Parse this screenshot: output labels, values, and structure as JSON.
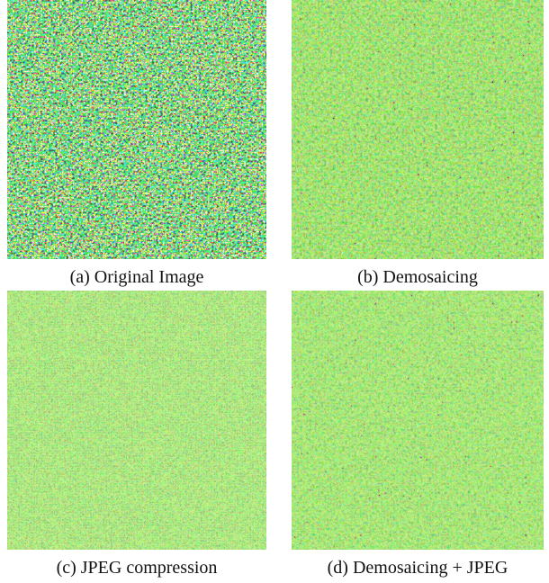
{
  "figure": {
    "panels": [
      {
        "caption": "(a) Original Image"
      },
      {
        "caption": "(b) Demosaicing"
      },
      {
        "caption": "(c) JPEG compression"
      },
      {
        "caption": "(d) Demosaicing + JPEG"
      }
    ]
  }
}
